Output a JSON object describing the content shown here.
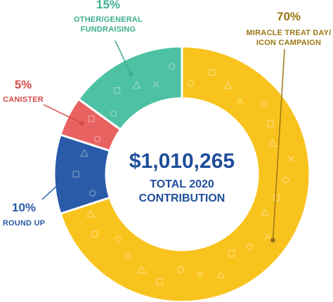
{
  "chart_data": {
    "type": "pie",
    "variant": "donut",
    "title": "",
    "center": {
      "amount": "$1,010,265",
      "line1": "TOTAL 2020",
      "line2": "CONTRIBUTION"
    },
    "slices": [
      {
        "label_lines": [
          "MIRACLE TREAT DAY/",
          "ICON CAMPAIGN"
        ],
        "percent_label": "70%",
        "value": 70,
        "color": "#F9C31E",
        "text_color": "#9A7612"
      },
      {
        "label_lines": [
          "ROUND UP"
        ],
        "percent_label": "10%",
        "value": 10,
        "color": "#2A5BA8",
        "text_color": "#2A5BA8"
      },
      {
        "label_lines": [
          "CANISTER"
        ],
        "percent_label": "5%",
        "value": 5,
        "color": "#E96262",
        "text_color": "#D64A4A"
      },
      {
        "label_lines": [
          "OTHER/GENERAL",
          "FUNDRAISING"
        ],
        "percent_label": "15%",
        "value": 15,
        "color": "#4DC1A3",
        "text_color": "#3DAE90"
      }
    ],
    "total_color": "#1F4E9A"
  }
}
